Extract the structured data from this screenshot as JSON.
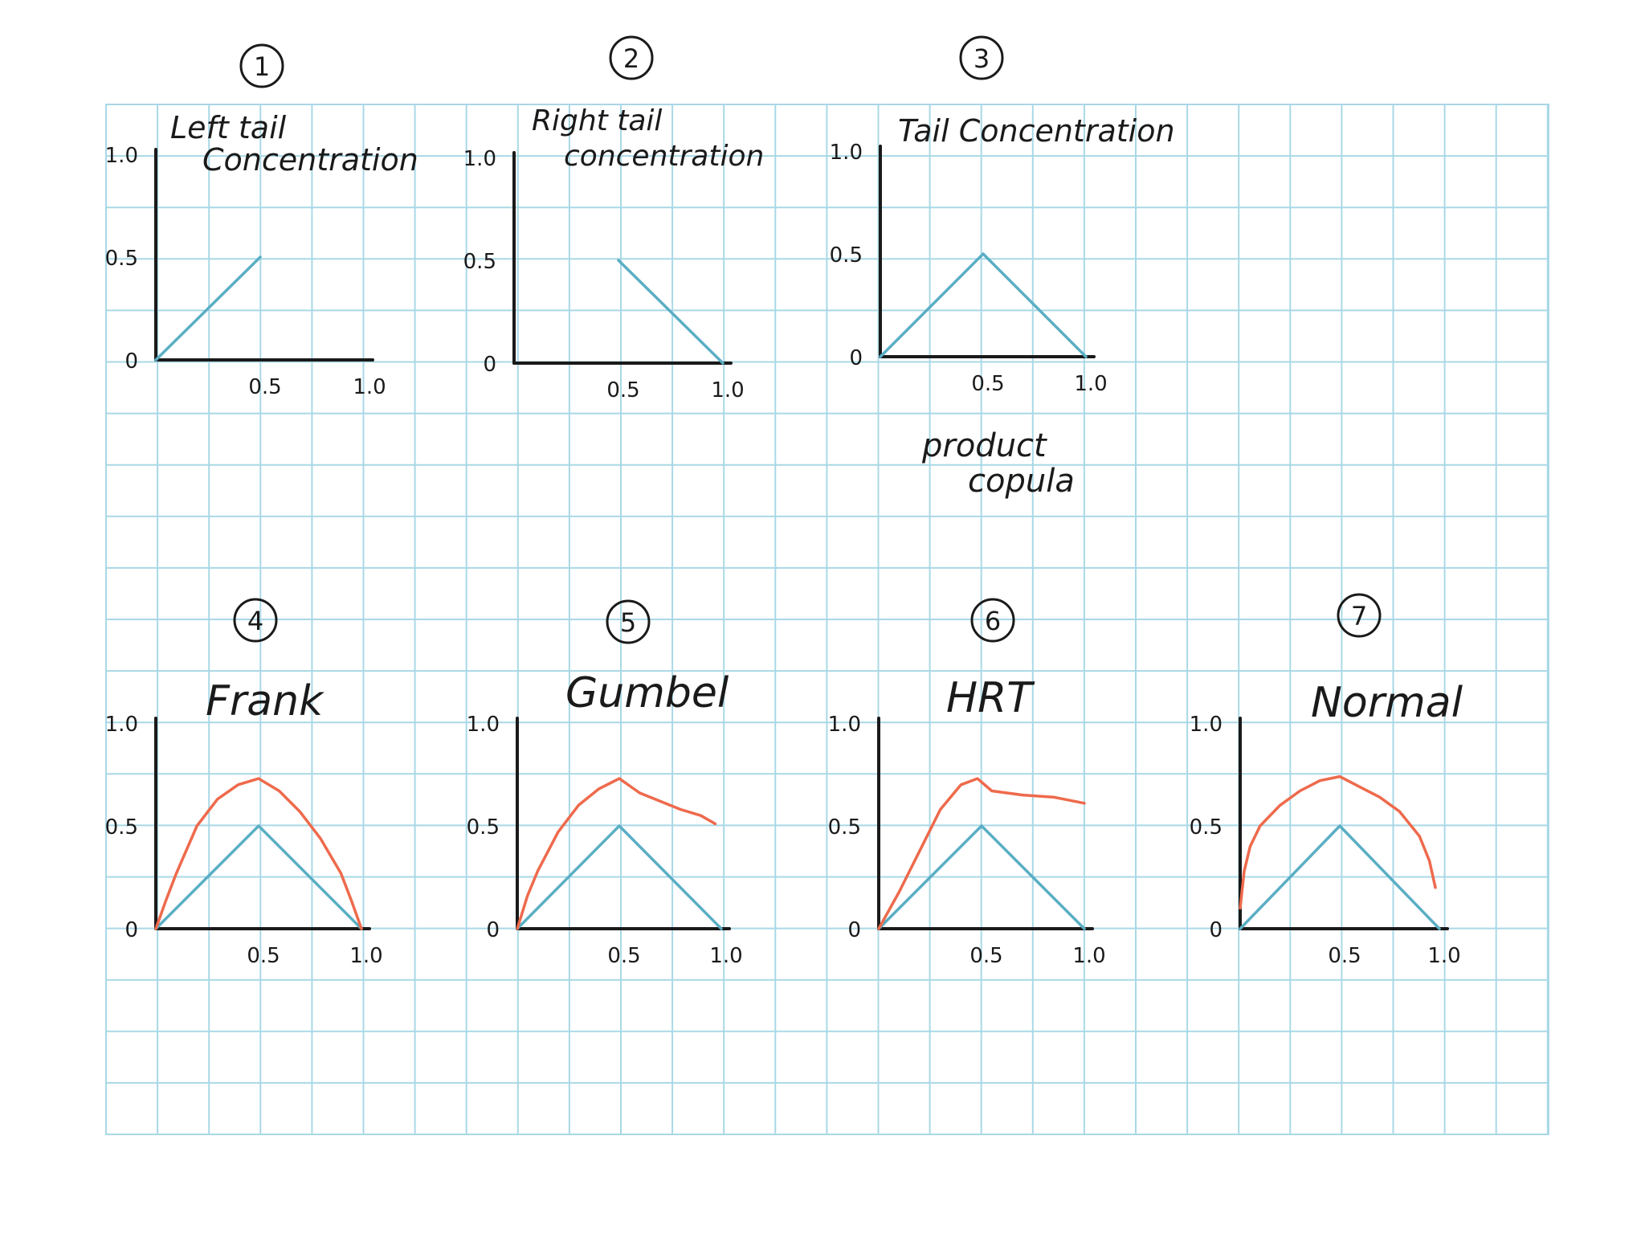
{
  "colors": {
    "background": "#ffffff",
    "grid": "#a9d8e6",
    "axis": "#1a1a1a",
    "product_copula_line": "#5aaec4",
    "copula_curve": "#ee6a4c",
    "ink": "#1a1a1a"
  },
  "labels": {
    "product_copula_line1": "product",
    "product_copula_line2": "copula"
  },
  "chart_data": [
    {
      "type": "line",
      "number": "1",
      "title_line1": "Left tail",
      "title_line2": "Concentration",
      "xlim": [
        0,
        1
      ],
      "ylim": [
        0,
        1
      ],
      "x_ticks": [
        "0.5",
        "1.0"
      ],
      "y_ticks": [
        "0",
        "0.5",
        "1.0"
      ],
      "series": [
        {
          "role": "product",
          "x": [
            0,
            0.5
          ],
          "y": [
            0,
            0.5
          ]
        }
      ]
    },
    {
      "type": "line",
      "number": "2",
      "title_line1": "Right tail",
      "title_line2": "concentration",
      "xlim": [
        0,
        1
      ],
      "ylim": [
        0,
        1
      ],
      "x_ticks": [
        "0.5",
        "1.0"
      ],
      "y_ticks": [
        "0",
        "0.5",
        "1.0"
      ],
      "series": [
        {
          "role": "product",
          "x": [
            0.5,
            1.0
          ],
          "y": [
            0.5,
            0
          ]
        }
      ]
    },
    {
      "type": "line",
      "number": "3",
      "title_line1": "Tail Concentration",
      "title_line2": "",
      "xlim": [
        0,
        1
      ],
      "ylim": [
        0,
        1
      ],
      "x_ticks": [
        "0.5",
        "1.0"
      ],
      "y_ticks": [
        "0",
        "0.5",
        "1.0"
      ],
      "series": [
        {
          "role": "product",
          "x": [
            0,
            0.5,
            1.0
          ],
          "y": [
            0,
            0.5,
            0
          ]
        }
      ]
    },
    {
      "type": "line",
      "number": "4",
      "title_line1": "Frank",
      "title_line2": "",
      "xlim": [
        0,
        1
      ],
      "ylim": [
        0,
        1
      ],
      "x_ticks": [
        "0.5",
        "1.0"
      ],
      "y_ticks": [
        "0",
        "0.5",
        "1.0"
      ],
      "series": [
        {
          "role": "product",
          "x": [
            0,
            0.5,
            1.0
          ],
          "y": [
            0,
            0.5,
            0
          ]
        },
        {
          "role": "copula",
          "x": [
            0,
            0.05,
            0.1,
            0.2,
            0.3,
            0.4,
            0.5,
            0.6,
            0.7,
            0.8,
            0.9,
            0.95,
            1.0
          ],
          "y": [
            0,
            0.14,
            0.27,
            0.5,
            0.63,
            0.7,
            0.73,
            0.67,
            0.57,
            0.44,
            0.27,
            0.14,
            0
          ]
        }
      ]
    },
    {
      "type": "line",
      "number": "5",
      "title_line1": "Gumbel",
      "title_line2": "",
      "xlim": [
        0,
        1
      ],
      "ylim": [
        0,
        1
      ],
      "x_ticks": [
        "0.5",
        "1.0"
      ],
      "y_ticks": [
        "0",
        "0.5",
        "1.0"
      ],
      "series": [
        {
          "role": "product",
          "x": [
            0,
            0.5,
            1.0
          ],
          "y": [
            0,
            0.5,
            0
          ]
        },
        {
          "role": "copula",
          "x": [
            0,
            0.05,
            0.1,
            0.2,
            0.3,
            0.4,
            0.5,
            0.6,
            0.7,
            0.8,
            0.9,
            0.97
          ],
          "y": [
            0,
            0.16,
            0.28,
            0.47,
            0.6,
            0.68,
            0.73,
            0.66,
            0.62,
            0.58,
            0.55,
            0.51
          ]
        }
      ]
    },
    {
      "type": "line",
      "number": "6",
      "title_line1": "HRT",
      "title_line2": "",
      "xlim": [
        0,
        1
      ],
      "ylim": [
        0,
        1
      ],
      "x_ticks": [
        "0.5",
        "1.0"
      ],
      "y_ticks": [
        "0",
        "0.5",
        "1.0"
      ],
      "series": [
        {
          "role": "product",
          "x": [
            0,
            0.5,
            1.0
          ],
          "y": [
            0,
            0.5,
            0
          ]
        },
        {
          "role": "copula",
          "x": [
            0,
            0.1,
            0.2,
            0.3,
            0.4,
            0.48,
            0.55,
            0.7,
            0.85,
            1.0
          ],
          "y": [
            0,
            0.18,
            0.38,
            0.58,
            0.7,
            0.73,
            0.67,
            0.65,
            0.64,
            0.61
          ]
        }
      ]
    },
    {
      "type": "line",
      "number": "7",
      "title_line1": "Normal",
      "title_line2": "",
      "xlim": [
        0,
        1
      ],
      "ylim": [
        0,
        1
      ],
      "x_ticks": [
        "0.5",
        "1.0"
      ],
      "y_ticks": [
        "0",
        "0.5",
        "1.0"
      ],
      "series": [
        {
          "role": "product",
          "x": [
            0,
            0.5,
            1.0
          ],
          "y": [
            0,
            0.5,
            0
          ]
        },
        {
          "role": "copula",
          "x": [
            0,
            0.02,
            0.05,
            0.1,
            0.2,
            0.3,
            0.4,
            0.5,
            0.6,
            0.7,
            0.8,
            0.9,
            0.95,
            0.98
          ],
          "y": [
            0.1,
            0.28,
            0.4,
            0.5,
            0.6,
            0.67,
            0.72,
            0.74,
            0.69,
            0.64,
            0.57,
            0.45,
            0.33,
            0.2
          ]
        }
      ]
    }
  ]
}
